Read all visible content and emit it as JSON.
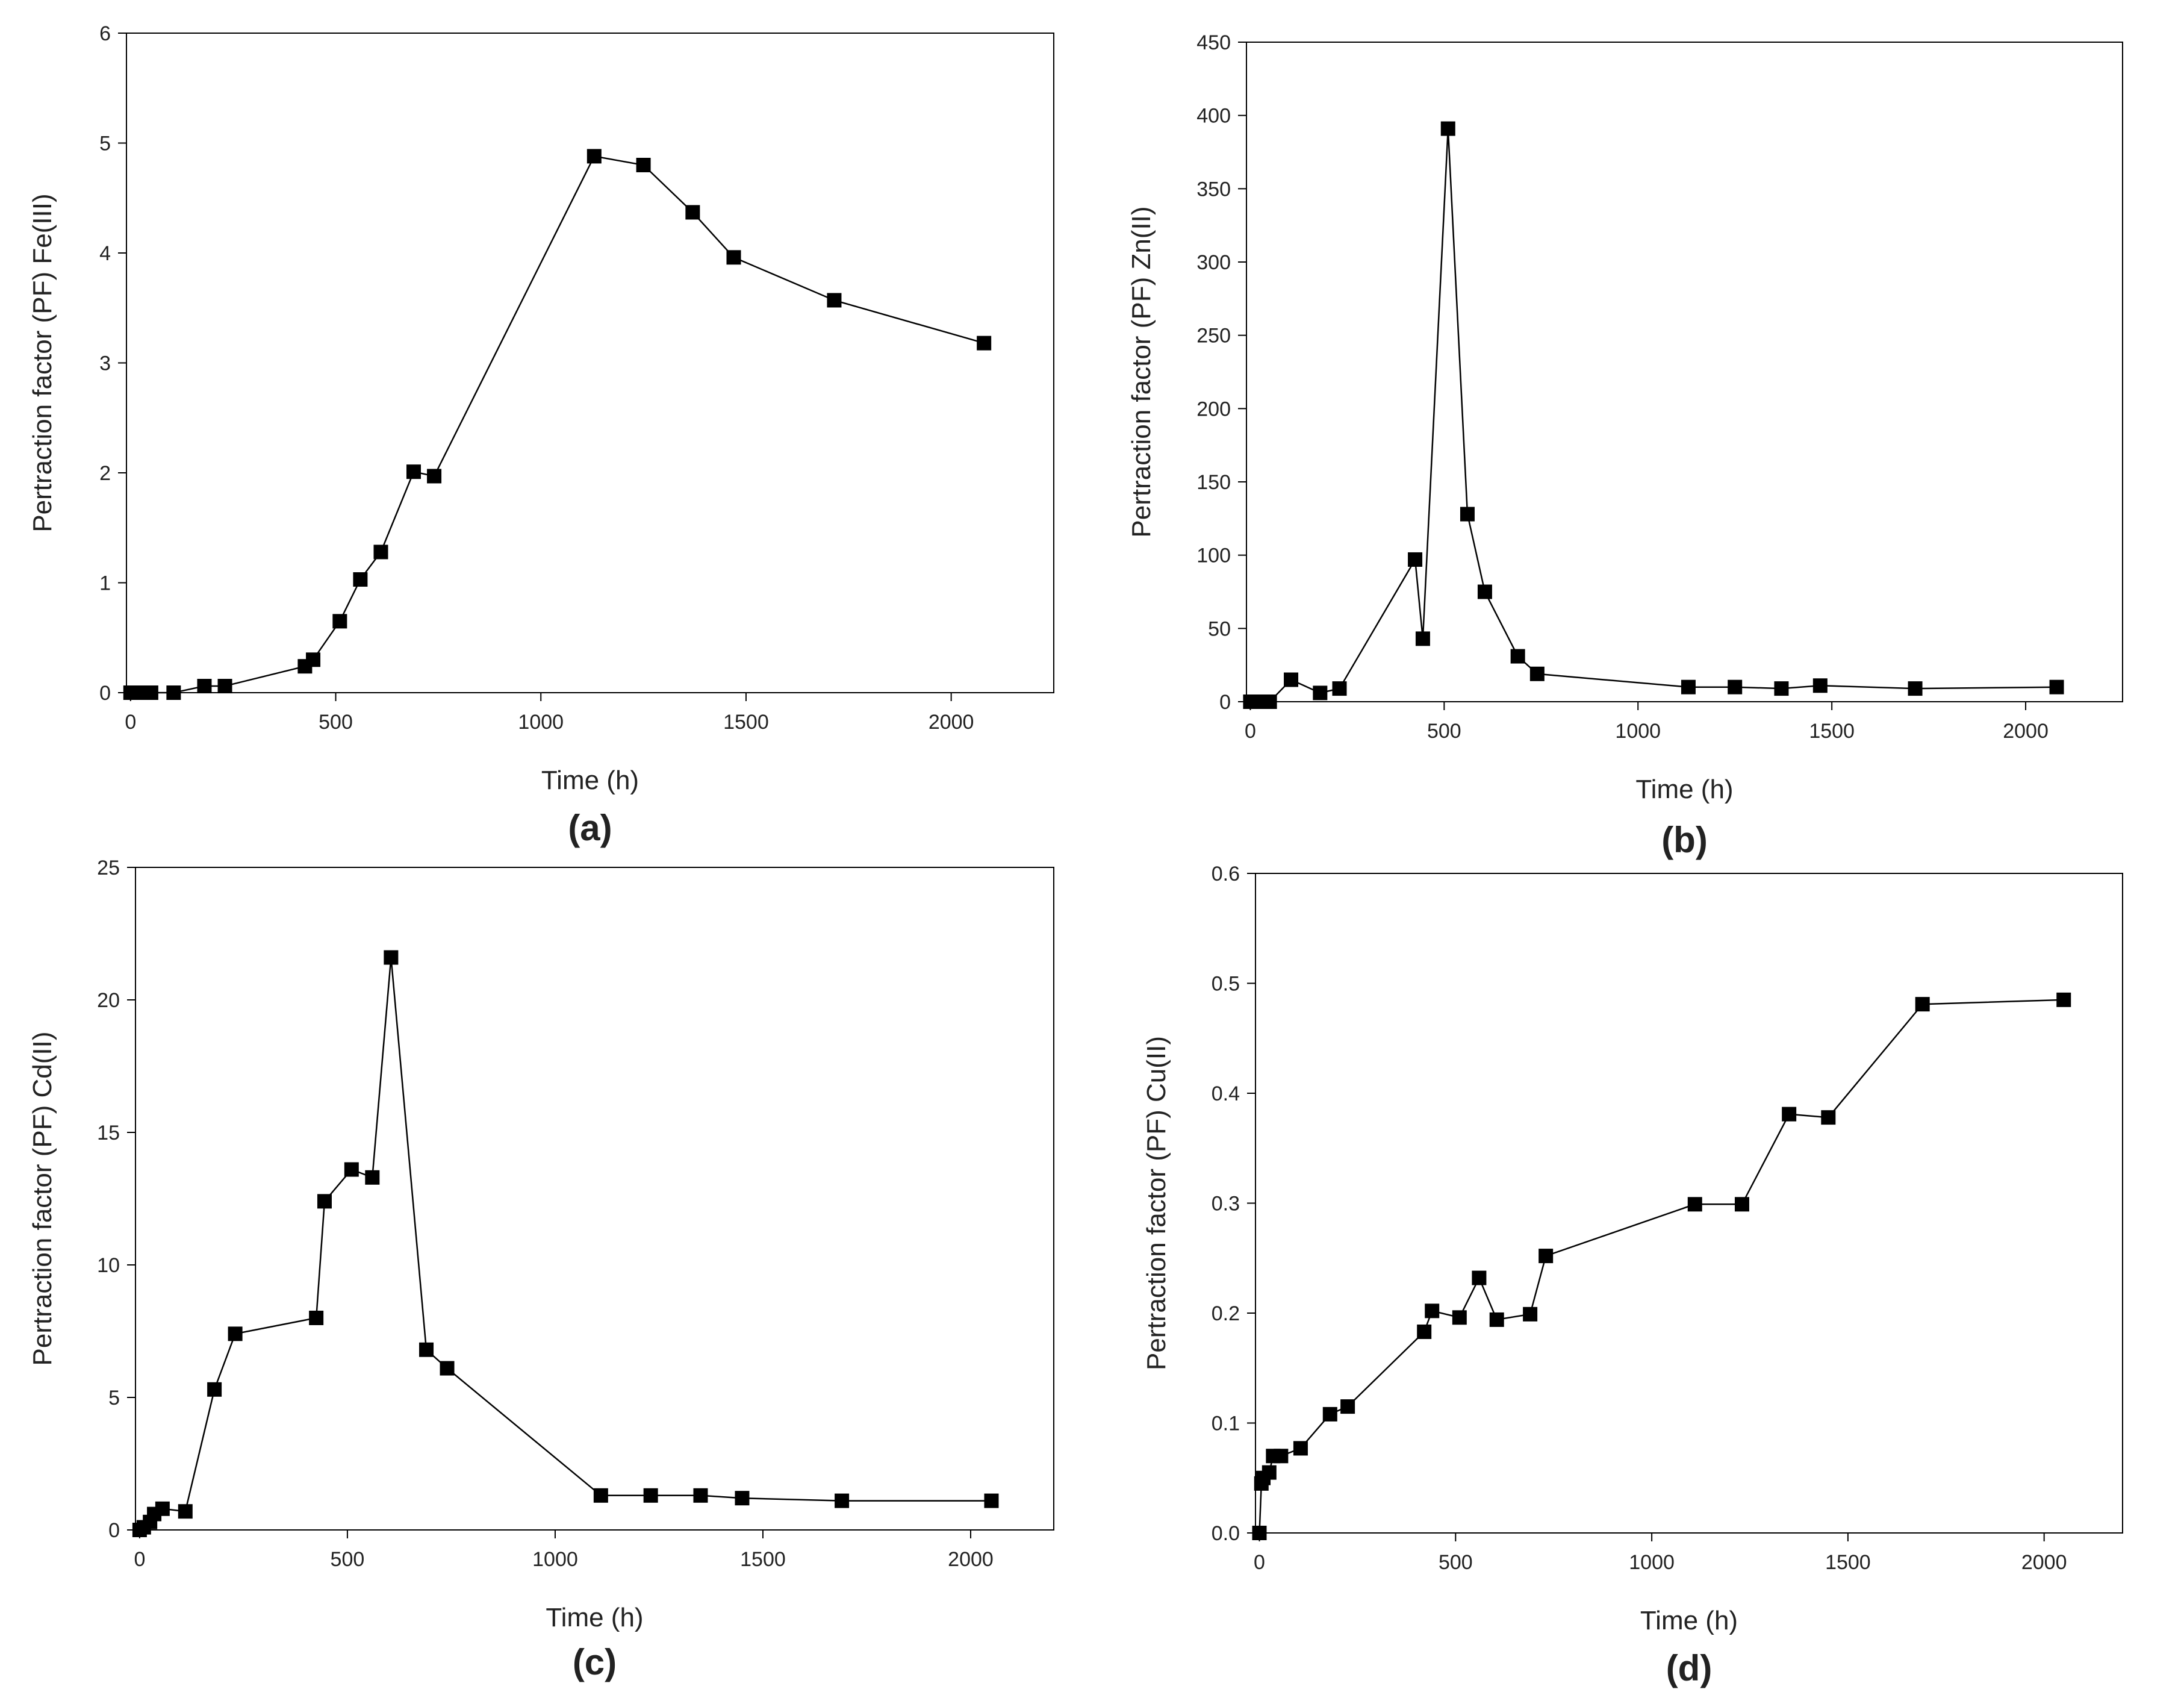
{
  "chart_data": [
    {
      "type": "line",
      "panel_label": "(a)",
      "xlabel": "Time (h)",
      "ylabel": "Pertraction factor (PF) Fe(III)",
      "xlim": [
        -10,
        2250
      ],
      "ylim": [
        0,
        6
      ],
      "x_ticks": [
        "0",
        "500",
        "1000",
        "1500",
        "2000"
      ],
      "y_ticks": [
        "0",
        "1",
        "2",
        "3",
        "4",
        "5",
        "6"
      ],
      "marker_color": "#000000",
      "line_color": "#000000",
      "x": [
        0,
        10,
        25,
        50,
        105,
        180,
        230,
        425,
        445,
        510,
        560,
        610,
        690,
        740,
        1130,
        1250,
        1370,
        1470,
        1715,
        2080
      ],
      "y": [
        0,
        0,
        0,
        0,
        0,
        0.06,
        0.06,
        0.24,
        0.3,
        0.65,
        1.03,
        1.28,
        2.01,
        1.97,
        4.88,
        4.8,
        4.37,
        3.96,
        3.57,
        3.18
      ]
    },
    {
      "type": "line",
      "panel_label": "(b)",
      "xlabel": "Time (h)",
      "ylabel": "Pertraction factor (PF) Zn(II)",
      "xlim": [
        -10,
        2250
      ],
      "ylim": [
        0,
        450
      ],
      "x_ticks": [
        "0",
        "500",
        "1000",
        "1500",
        "2000"
      ],
      "y_ticks": [
        "0",
        "50",
        "100",
        "150",
        "200",
        "250",
        "300",
        "350",
        "400",
        "450"
      ],
      "marker_color": "#000000",
      "line_color": "#000000",
      "x": [
        0,
        10,
        25,
        50,
        105,
        180,
        230,
        425,
        445,
        510,
        560,
        605,
        690,
        740,
        1130,
        1250,
        1370,
        1470,
        1715,
        2080
      ],
      "y": [
        0,
        0,
        0,
        0,
        15,
        6,
        9,
        97,
        43,
        391,
        128,
        75,
        31,
        19,
        10,
        10,
        9,
        11,
        9,
        10
      ]
    },
    {
      "type": "line",
      "panel_label": "(c)",
      "xlabel": "Time (h)",
      "ylabel": "Pertraction factor (PF) Cd(II)",
      "xlim": [
        -10,
        2200
      ],
      "ylim": [
        0,
        25
      ],
      "x_ticks": [
        "0",
        "500",
        "1000",
        "1500",
        "2000"
      ],
      "y_ticks": [
        "0",
        "5",
        "10",
        "15",
        "20",
        "25"
      ],
      "marker_color": "#000000",
      "line_color": "#000000",
      "x": [
        0,
        10,
        25,
        35,
        55,
        110,
        180,
        230,
        425,
        445,
        510,
        560,
        605,
        690,
        740,
        1110,
        1230,
        1350,
        1450,
        1690,
        2050
      ],
      "y": [
        0,
        0.1,
        0.3,
        0.6,
        0.8,
        0.7,
        5.3,
        7.4,
        8.0,
        12.4,
        13.6,
        13.3,
        21.6,
        6.8,
        6.1,
        1.3,
        1.3,
        1.3,
        1.2,
        1.1,
        1.1
      ]
    },
    {
      "type": "line",
      "panel_label": "(d)",
      "xlabel": "Time (h)",
      "ylabel": "Pertraction factor (PF) Cu(II)",
      "xlim": [
        -10,
        2200
      ],
      "ylim": [
        0,
        0.6
      ],
      "x_ticks": [
        "0",
        "500",
        "1000",
        "1500",
        "2000"
      ],
      "y_ticks": [
        "0.0",
        "0.1",
        "0.2",
        "0.3",
        "0.4",
        "0.5",
        "0.6"
      ],
      "marker_color": "#000000",
      "line_color": "#000000",
      "x": [
        0,
        5,
        10,
        25,
        35,
        55,
        105,
        180,
        225,
        420,
        440,
        510,
        560,
        605,
        690,
        730,
        1110,
        1230,
        1350,
        1450,
        1690,
        2050
      ],
      "y": [
        0.0,
        0.045,
        0.05,
        0.055,
        0.07,
        0.07,
        0.077,
        0.108,
        0.115,
        0.183,
        0.202,
        0.196,
        0.232,
        0.194,
        0.199,
        0.252,
        0.299,
        0.299,
        0.381,
        0.378,
        0.481,
        0.485
      ]
    }
  ]
}
